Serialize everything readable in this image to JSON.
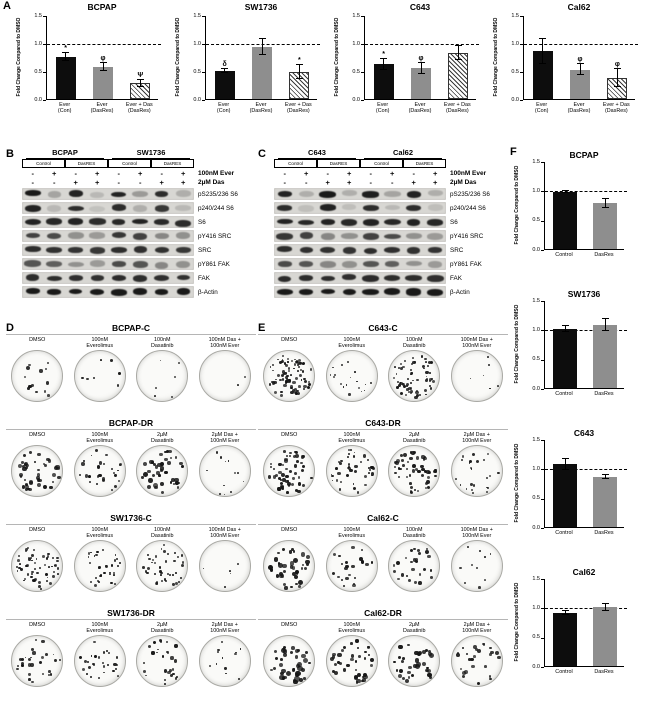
{
  "colors": {
    "bar_black": "#0d0d0d",
    "bar_gray": "#8e8e8e",
    "refline": "#000000"
  },
  "panelA": {
    "letter": "A",
    "ylabel": "Fold Change Compared to DMSO",
    "ylim": [
      0,
      1.5
    ],
    "yticks": [
      "0.0",
      "0.5",
      "1.0",
      "1.5"
    ],
    "refline": 1.0,
    "categories": [
      [
        "Ever",
        "(Con)"
      ],
      [
        "Ever",
        "(DasRes)"
      ],
      [
        "Ever + Das",
        "(DasRes)"
      ]
    ],
    "styles": [
      "black",
      "gray",
      "hatch"
    ],
    "charts": [
      {
        "type": "bar",
        "title": "BCPAP",
        "values": [
          0.75,
          0.57,
          0.28
        ],
        "errors": [
          0.08,
          0.07,
          0.06
        ],
        "annotations": [
          "*",
          "φ",
          "Ψ"
        ]
      },
      {
        "type": "bar",
        "title": "SW1736",
        "values": [
          0.5,
          0.93,
          0.48
        ],
        "errors": [
          0.04,
          0.15,
          0.13
        ],
        "annotations": [
          "δ",
          "",
          "*"
        ]
      },
      {
        "type": "bar",
        "title": "C643",
        "values": [
          0.62,
          0.55,
          0.82
        ],
        "errors": [
          0.1,
          0.1,
          0.13
        ],
        "annotations": [
          "*",
          "φ",
          ""
        ]
      },
      {
        "type": "bar",
        "title": "Cal62",
        "values": [
          0.85,
          0.52,
          0.38
        ],
        "errors": [
          0.22,
          0.1,
          0.16
        ],
        "annotations": [
          "",
          "φ",
          "φ"
        ]
      }
    ]
  },
  "panelB": {
    "letter": "B",
    "cell_lines": [
      "BCPAP",
      "SW1736"
    ],
    "groups": [
      "Control",
      "DasRES"
    ],
    "treatment_rows": [
      {
        "label": "100nM Ever",
        "signs": [
          "-",
          "+",
          "-",
          "+",
          "-",
          "+",
          "-",
          "+"
        ]
      },
      {
        "label": "2µM Das",
        "signs": [
          "-",
          "-",
          "+",
          "+",
          "-",
          "-",
          "+",
          "+"
        ]
      }
    ],
    "blot_rows": [
      {
        "label": "pS235/236 S6",
        "bands": [
          0.95,
          0.25,
          0.9,
          0.15,
          0.9,
          0.3,
          0.85,
          0.2
        ]
      },
      {
        "label": "p240/244 S6",
        "bands": [
          0.9,
          0.15,
          0.85,
          0.1,
          0.85,
          0.2,
          0.8,
          0.15
        ]
      },
      {
        "label": "S6",
        "bands": [
          0.9,
          0.88,
          0.9,
          0.85,
          0.88,
          0.9,
          0.87,
          0.85
        ]
      },
      {
        "label": "pY416 SRC",
        "bands": [
          0.75,
          0.7,
          0.35,
          0.3,
          0.8,
          0.75,
          0.4,
          0.35
        ]
      },
      {
        "label": "SRC",
        "bands": [
          0.85,
          0.83,
          0.82,
          0.8,
          0.85,
          0.84,
          0.83,
          0.8
        ]
      },
      {
        "label": "pY861 FAK",
        "bands": [
          0.65,
          0.6,
          0.35,
          0.3,
          0.7,
          0.65,
          0.4,
          0.35
        ]
      },
      {
        "label": "FAK",
        "bands": [
          0.85,
          0.85,
          0.84,
          0.83,
          0.86,
          0.85,
          0.84,
          0.83
        ]
      },
      {
        "label": "β-Actin",
        "bands": [
          0.95,
          0.95,
          0.95,
          0.95,
          0.95,
          0.95,
          0.95,
          0.95
        ]
      }
    ]
  },
  "panelC": {
    "letter": "C",
    "cell_lines": [
      "C643",
      "Cal62"
    ],
    "groups": [
      "Control",
      "DasRES"
    ],
    "treatment_rows": [
      {
        "label": "100nM Ever",
        "signs": [
          "-",
          "+",
          "-",
          "+",
          "-",
          "+",
          "-",
          "+"
        ]
      },
      {
        "label": "2µM Das",
        "signs": [
          "-",
          "-",
          "+",
          "+",
          "-",
          "-",
          "+",
          "+"
        ]
      }
    ],
    "blot_rows": [
      {
        "label": "pS235/236 S6",
        "bands": [
          0.9,
          0.2,
          0.95,
          0.2,
          0.92,
          0.25,
          0.9,
          0.2
        ]
      },
      {
        "label": "p240/244 S6",
        "bands": [
          0.85,
          0.12,
          0.9,
          0.12,
          0.85,
          0.15,
          0.85,
          0.12
        ]
      },
      {
        "label": "S6",
        "bands": [
          0.9,
          0.88,
          0.9,
          0.88,
          0.9,
          0.88,
          0.9,
          0.88
        ]
      },
      {
        "label": "pY416 SRC",
        "bands": [
          0.8,
          0.75,
          0.4,
          0.35,
          0.75,
          0.7,
          0.35,
          0.3
        ]
      },
      {
        "label": "SRC",
        "bands": [
          0.85,
          0.84,
          0.83,
          0.82,
          0.85,
          0.84,
          0.83,
          0.82
        ]
      },
      {
        "label": "pY861 FAK",
        "bands": [
          0.7,
          0.65,
          0.4,
          0.35,
          0.65,
          0.6,
          0.35,
          0.3
        ]
      },
      {
        "label": "FAK",
        "bands": [
          0.86,
          0.85,
          0.85,
          0.84,
          0.86,
          0.85,
          0.85,
          0.84
        ]
      },
      {
        "label": "β-Actin",
        "bands": [
          0.95,
          0.95,
          0.95,
          0.95,
          0.95,
          0.95,
          0.95,
          0.95
        ]
      }
    ]
  },
  "panelD": {
    "letter": "D",
    "rows": [
      {
        "title": "BCPAP-C",
        "dishes": [
          {
            "label": [
              "DMSO",
              ""
            ],
            "colonies": 13,
            "dot_min": 2.0,
            "dot_max": 4.5
          },
          {
            "label": [
              "100nM",
              "Everolimus"
            ],
            "colonies": 7,
            "dot_min": 1.5,
            "dot_max": 3.0
          },
          {
            "label": [
              "100nM",
              "Dasatinib"
            ],
            "colonies": 6,
            "dot_min": 1.5,
            "dot_max": 3.0
          },
          {
            "label": [
              "100nM Das +",
              "100nM Ever"
            ],
            "colonies": 2,
            "dot_min": 1.5,
            "dot_max": 2.5
          }
        ]
      },
      {
        "title": "BCPAP-DR",
        "dishes": [
          {
            "label": [
              "DMSO",
              ""
            ],
            "colonies": 42,
            "dot_min": 2.0,
            "dot_max": 4.5
          },
          {
            "label": [
              "100nM",
              "Everolimus"
            ],
            "colonies": 26,
            "dot_min": 1.5,
            "dot_max": 3.5
          },
          {
            "label": [
              "2µM",
              "Dasatinib"
            ],
            "colonies": 40,
            "dot_min": 2.0,
            "dot_max": 5.0
          },
          {
            "label": [
              "2µM Das +",
              "100nM Ever"
            ],
            "colonies": 12,
            "dot_min": 1.0,
            "dot_max": 2.5
          }
        ]
      },
      {
        "title": "SW1736-C",
        "dishes": [
          {
            "label": [
              "DMSO",
              ""
            ],
            "colonies": 55,
            "dot_min": 1.5,
            "dot_max": 3.0
          },
          {
            "label": [
              "100nM",
              "Everolimus"
            ],
            "colonies": 32,
            "dot_min": 1.5,
            "dot_max": 3.0
          },
          {
            "label": [
              "100nM",
              "Dasatinib"
            ],
            "colonies": 40,
            "dot_min": 1.5,
            "dot_max": 3.0
          },
          {
            "label": [
              "100nM Das +",
              "100nM Ever"
            ],
            "colonies": 5,
            "dot_min": 1.0,
            "dot_max": 2.0
          }
        ]
      },
      {
        "title": "SW1736-DR",
        "dishes": [
          {
            "label": [
              "DMSO",
              ""
            ],
            "colonies": 28,
            "dot_min": 1.5,
            "dot_max": 3.5
          },
          {
            "label": [
              "100nM",
              "Everolimus"
            ],
            "colonies": 27,
            "dot_min": 1.5,
            "dot_max": 3.5
          },
          {
            "label": [
              "2µM",
              "Dasatinib"
            ],
            "colonies": 27,
            "dot_min": 1.5,
            "dot_max": 3.5
          },
          {
            "label": [
              "2µM Das +",
              "100nM Ever"
            ],
            "colonies": 12,
            "dot_min": 1.0,
            "dot_max": 2.5
          }
        ]
      }
    ]
  },
  "panelE": {
    "letter": "E",
    "rows": [
      {
        "title": "C643-C",
        "dishes": [
          {
            "label": [
              "DMSO",
              ""
            ],
            "colonies": 85,
            "dot_min": 1.5,
            "dot_max": 3.5
          },
          {
            "label": [
              "100nM",
              "Everolimus"
            ],
            "colonies": 18,
            "dot_min": 1.0,
            "dot_max": 2.5
          },
          {
            "label": [
              "100nM",
              "Dasatinib"
            ],
            "colonies": 65,
            "dot_min": 1.5,
            "dot_max": 3.5
          },
          {
            "label": [
              "100nM Das +",
              "100nM Ever"
            ],
            "colonies": 6,
            "dot_min": 1.0,
            "dot_max": 2.0
          }
        ]
      },
      {
        "title": "C643-DR",
        "dishes": [
          {
            "label": [
              "DMSO",
              ""
            ],
            "colonies": 55,
            "dot_min": 2.0,
            "dot_max": 4.0
          },
          {
            "label": [
              "100nM",
              "Everolimus"
            ],
            "colonies": 42,
            "dot_min": 1.5,
            "dot_max": 3.5
          },
          {
            "label": [
              "2µM",
              "Dasatinib"
            ],
            "colonies": 50,
            "dot_min": 2.0,
            "dot_max": 4.0
          },
          {
            "label": [
              "2µM Das +",
              "100nM Ever"
            ],
            "colonies": 24,
            "dot_min": 1.5,
            "dot_max": 3.0
          }
        ]
      },
      {
        "title": "Cal62-C",
        "dishes": [
          {
            "label": [
              "DMSO",
              ""
            ],
            "colonies": 38,
            "dot_min": 2.5,
            "dot_max": 5.0
          },
          {
            "label": [
              "100nM",
              "Everolimus"
            ],
            "colonies": 22,
            "dot_min": 2.0,
            "dot_max": 4.0
          },
          {
            "label": [
              "100nM",
              "Dasatinib"
            ],
            "colonies": 26,
            "dot_min": 2.0,
            "dot_max": 4.0
          },
          {
            "label": [
              "100nM Das +",
              "100nM Ever"
            ],
            "colonies": 10,
            "dot_min": 1.5,
            "dot_max": 3.0
          }
        ]
      },
      {
        "title": "Cal62-DR",
        "dishes": [
          {
            "label": [
              "DMSO",
              ""
            ],
            "colonies": 40,
            "dot_min": 2.5,
            "dot_max": 5.5
          },
          {
            "label": [
              "100nM",
              "Everolimus"
            ],
            "colonies": 38,
            "dot_min": 2.0,
            "dot_max": 4.5
          },
          {
            "label": [
              "2µM",
              "Dasatinib"
            ],
            "colonies": 34,
            "dot_min": 2.5,
            "dot_max": 5.0
          },
          {
            "label": [
              "2µM Das +",
              "100nM Ever"
            ],
            "colonies": 26,
            "dot_min": 2.0,
            "dot_max": 4.0
          }
        ]
      }
    ]
  },
  "panelF": {
    "letter": "F",
    "ylabel": "Fold Change Compared to DMSO",
    "ylim": [
      0,
      1.5
    ],
    "yticks": [
      "0.0",
      "0.5",
      "1.0",
      "1.5"
    ],
    "refline": 1.0,
    "categories": [
      [
        "Control"
      ],
      [
        "DasRes"
      ]
    ],
    "styles": [
      "black",
      "gray"
    ],
    "charts": [
      {
        "type": "bar",
        "title": "BCPAP",
        "values": [
          0.97,
          0.78
        ],
        "errors": [
          0.02,
          0.08
        ],
        "annotations": [
          "",
          ""
        ]
      },
      {
        "type": "bar",
        "title": "SW1736",
        "values": [
          1.0,
          1.07
        ],
        "errors": [
          0.05,
          0.1
        ],
        "annotations": [
          "",
          ""
        ]
      },
      {
        "type": "bar",
        "title": "C643",
        "values": [
          1.07,
          0.85
        ],
        "errors": [
          0.09,
          0.03
        ],
        "annotations": [
          "",
          ""
        ]
      },
      {
        "type": "bar",
        "title": "Cal62",
        "values": [
          0.9,
          1.0
        ],
        "errors": [
          0.03,
          0.06
        ],
        "annotations": [
          "",
          ""
        ]
      }
    ]
  }
}
